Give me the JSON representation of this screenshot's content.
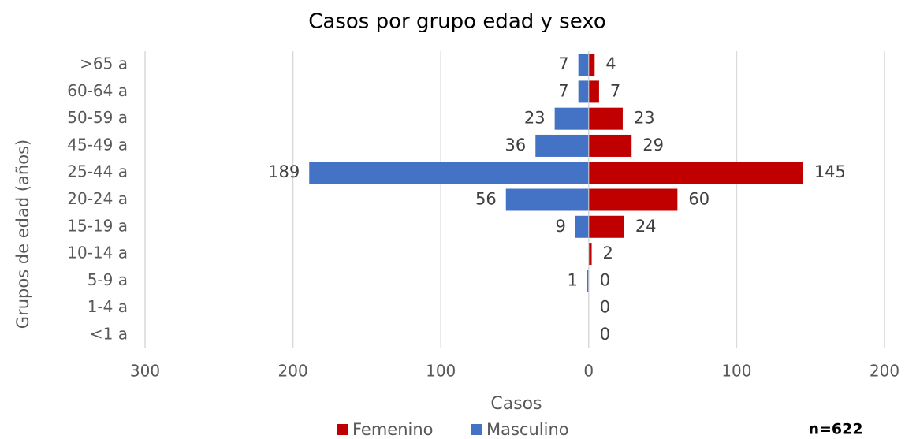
{
  "chart_data": {
    "type": "bar",
    "orientation": "horizontal",
    "stacked": true,
    "title": "Casos por grupo edad y sexo",
    "x_label": "Casos",
    "y_label": "Grupos de edad (años)",
    "annotation": "n=622",
    "categories": [
      ">65 a",
      "60-64 a",
      "50-59 a",
      "45-49 a",
      "25-44 a",
      "20-24 a",
      "15-19 a",
      "10-14 a",
      "5-9 a",
      "1-4 a",
      "<1 a"
    ],
    "series": [
      {
        "name": "Femenino",
        "color": "#c00000",
        "values": [
          4,
          7,
          23,
          29,
          145,
          60,
          24,
          2,
          0,
          0,
          0
        ]
      },
      {
        "name": "Masculino",
        "color": "#4472c4",
        "values": [
          -7,
          -7,
          -23,
          -36,
          -189,
          -56,
          -9,
          null,
          -1,
          null,
          null
        ],
        "value_labels": [
          "7",
          "7",
          "23",
          "36",
          "189",
          "56",
          "9",
          null,
          "1",
          null,
          null
        ]
      }
    ],
    "xlim": [
      -300,
      200
    ],
    "xticks": [
      {
        "value": -300,
        "label": "300"
      },
      {
        "value": -200,
        "label": "200"
      },
      {
        "value": -100,
        "label": "100"
      },
      0,
      100,
      200
    ],
    "grid": true,
    "legend": "bottom"
  }
}
